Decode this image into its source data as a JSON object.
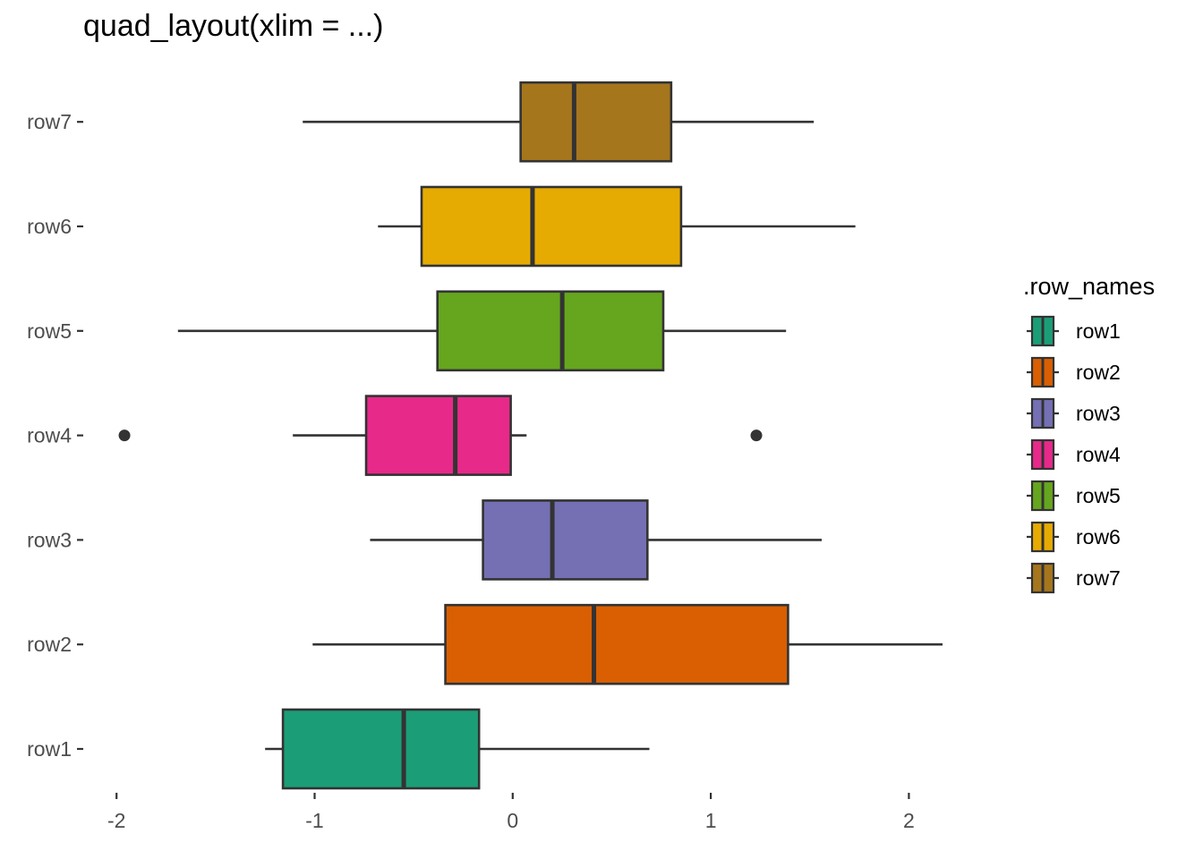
{
  "chart_data": {
    "type": "boxplot",
    "orientation": "horizontal",
    "title": "quad_layout(xlim = ...)",
    "xlabel": "",
    "ylabel": "",
    "xlim": [
      -2.0,
      2.2
    ],
    "x_ticks": [
      -2,
      -1,
      0,
      1,
      2
    ],
    "x_tick_labels": [
      "-2",
      "-1",
      "0",
      "1",
      "2"
    ],
    "categories": [
      "row1",
      "row2",
      "row3",
      "row4",
      "row5",
      "row6",
      "row7"
    ],
    "grid": false,
    "legend": {
      "title": ".row_names",
      "position": "right",
      "entries": [
        "row1",
        "row2",
        "row3",
        "row4",
        "row5",
        "row6",
        "row7"
      ]
    },
    "series": [
      {
        "name": "row1",
        "color": "#1B9E77",
        "whisker_low": -1.25,
        "q1": -1.16,
        "median": -0.55,
        "q3": -0.17,
        "whisker_high": 0.69,
        "outliers": []
      },
      {
        "name": "row2",
        "color": "#D95F02",
        "whisker_low": -1.01,
        "q1": -0.34,
        "median": 0.41,
        "q3": 1.39,
        "whisker_high": 2.17,
        "outliers": []
      },
      {
        "name": "row3",
        "color": "#7570B3",
        "whisker_low": -0.72,
        "q1": -0.15,
        "median": 0.2,
        "q3": 0.68,
        "whisker_high": 1.56,
        "outliers": []
      },
      {
        "name": "row4",
        "color": "#E7298A",
        "whisker_low": -1.11,
        "q1": -0.74,
        "median": -0.29,
        "q3": -0.01,
        "whisker_high": 0.07,
        "outliers": [
          -1.96,
          1.23
        ]
      },
      {
        "name": "row5",
        "color": "#66A61E",
        "whisker_low": -1.69,
        "q1": -0.38,
        "median": 0.25,
        "q3": 0.76,
        "whisker_high": 1.38,
        "outliers": []
      },
      {
        "name": "row6",
        "color": "#E6AB02",
        "whisker_low": -0.68,
        "q1": -0.46,
        "median": 0.1,
        "q3": 0.85,
        "whisker_high": 1.73,
        "outliers": []
      },
      {
        "name": "row7",
        "color": "#A6761D",
        "whisker_low": -1.06,
        "q1": 0.04,
        "median": 0.31,
        "q3": 0.8,
        "whisker_high": 1.52,
        "outliers": []
      }
    ]
  }
}
